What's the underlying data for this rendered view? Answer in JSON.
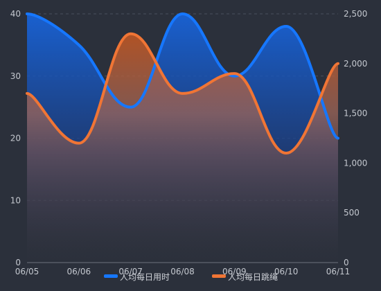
{
  "chart_data": {
    "type": "line",
    "categories": [
      "06/05",
      "06/06",
      "06/07",
      "06/08",
      "06/09",
      "06/10",
      "06/11"
    ],
    "y_left": {
      "min": 0,
      "max": 40,
      "ticks": [
        0,
        10,
        20,
        30,
        40
      ],
      "tick_labels": [
        "0",
        "10",
        "20",
        "30",
        "40"
      ]
    },
    "y_right": {
      "min": 0,
      "max": 2500,
      "ticks": [
        0,
        500,
        1000,
        1500,
        2000,
        2500
      ],
      "tick_labels": [
        "0",
        "500",
        "1,000",
        "1,500",
        "2,000",
        "2,500"
      ]
    },
    "grid": true,
    "legend_position": "bottom",
    "smooth": true,
    "area_fill": true,
    "series": [
      {
        "name": "人均每日用时",
        "axis": "left",
        "color": "#1677ff",
        "values": [
          40,
          35,
          25,
          40,
          30,
          38,
          20
        ]
      },
      {
        "name": "人均每日跳绳",
        "axis": "right",
        "color": "#f07535",
        "values": [
          1700,
          1200,
          2300,
          1700,
          1900,
          1100,
          2000
        ]
      }
    ]
  }
}
